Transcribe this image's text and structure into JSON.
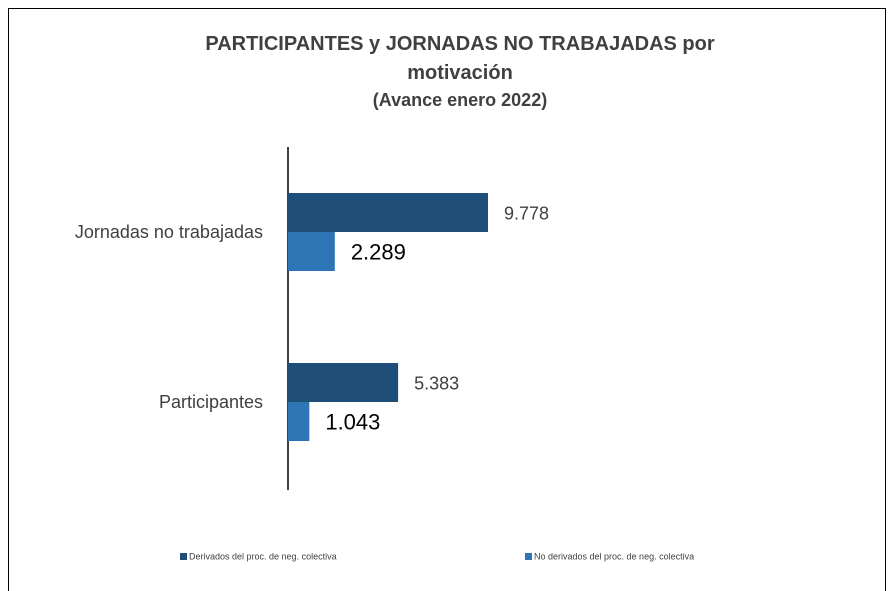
{
  "chart_data": {
    "type": "bar",
    "orientation": "horizontal",
    "title": "PARTICIPANTES y JORNADAS NO TRABAJADAS por motivación",
    "subtitle": "(Avance enero 2022)",
    "categories": [
      "Jornadas no trabajadas",
      "Participantes"
    ],
    "series": [
      {
        "name": "Derivados del proc. de neg. colectiva",
        "color": "#1f4e79",
        "values": [
          9778,
          5383
        ],
        "value_labels": [
          "9.778",
          "5.383"
        ]
      },
      {
        "name": "No derivados del proc. de neg. colectiva",
        "color": "#2e75b6",
        "values": [
          2289,
          1043
        ],
        "value_labels": [
          "2.289",
          "1.043"
        ]
      }
    ],
    "legend": "bottom"
  }
}
